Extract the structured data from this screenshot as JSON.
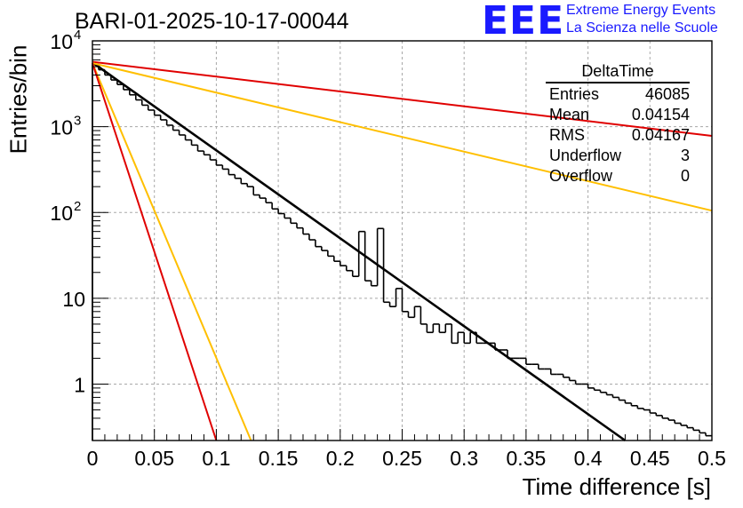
{
  "header": {
    "run_title": "BARI-01-2025-10-17-00044",
    "logo_text": "EEE",
    "logo_line1": "Extreme Energy Events",
    "logo_line2": "La Scienza nelle Scuole",
    "logo_color": "#1a1aff"
  },
  "stats": {
    "title": "DeltaTime",
    "rows": [
      {
        "label": "Entries",
        "value": "46085"
      },
      {
        "label": "Mean",
        "value": "0.04154"
      },
      {
        "label": "RMS",
        "value": "0.04167"
      },
      {
        "label": "Underflow",
        "value": "3"
      },
      {
        "label": "Overflow",
        "value": "0"
      }
    ]
  },
  "chart_data": {
    "type": "line",
    "title": "BARI-01-2025-10-17-00044",
    "xlabel": "Time difference [s]",
    "ylabel": "Entries/bin",
    "xlim": [
      0,
      0.5
    ],
    "ylim": [
      0.22,
      10000
    ],
    "yscale": "log",
    "grid": true,
    "x_ticks": [
      "0",
      "0.05",
      "0.1",
      "0.15",
      "0.2",
      "0.25",
      "0.3",
      "0.35",
      "0.4",
      "0.45",
      "0.5"
    ],
    "x_tick_values": [
      0,
      0.05,
      0.1,
      0.15,
      0.2,
      0.25,
      0.3,
      0.35,
      0.4,
      0.45,
      0.5
    ],
    "y_ticks": [
      {
        "value": 10000,
        "base": "10",
        "exp": "4"
      },
      {
        "value": 1000,
        "base": "10",
        "exp": "3"
      },
      {
        "value": 100,
        "base": "10",
        "exp": "2"
      },
      {
        "value": 10,
        "base": "10",
        "exp": ""
      },
      {
        "value": 1,
        "base": "1",
        "exp": ""
      }
    ],
    "histogram": {
      "name": "DeltaTime",
      "bin_width": 0.005,
      "counts": [
        5300,
        4600,
        4000,
        3500,
        3100,
        2700,
        2350,
        2050,
        1780,
        1560,
        1360,
        1200,
        1040,
        910,
        800,
        700,
        610,
        520,
        470,
        410,
        356,
        320,
        276,
        250,
        217,
        200,
        160,
        147,
        130,
        110,
        97,
        86,
        75,
        66,
        56,
        48,
        40,
        36,
        31,
        27,
        24,
        21,
        18,
        60,
        16,
        14,
        65,
        9,
        8,
        13,
        7,
        6,
        8,
        5,
        4,
        5,
        4,
        5,
        3,
        4,
        3,
        4,
        3,
        3,
        3,
        2.5,
        2.5,
        2,
        2,
        2,
        1.7,
        1.7,
        1.5,
        1.5,
        1.3,
        1.3,
        1.2,
        1.1,
        1,
        1,
        0.9,
        0.85,
        0.8,
        0.75,
        0.7,
        0.65,
        0.6,
        0.56,
        0.52,
        0.5,
        0.46,
        0.43,
        0.4,
        0.38,
        0.35,
        0.33,
        0.31,
        0.29,
        0.27,
        0.25
      ]
    },
    "fit_lines": [
      {
        "name": "fit",
        "color": "#000000",
        "x": [
          0,
          0.43
        ],
        "y": [
          5600,
          0.21
        ]
      },
      {
        "name": "tau-upper-slow",
        "color": "#e00000",
        "x": [
          0,
          0.5
        ],
        "y": [
          5700,
          780
        ]
      },
      {
        "name": "tau-lower-slow",
        "color": "#ffbf00",
        "x": [
          0,
          0.5
        ],
        "y": [
          5500,
          105
        ]
      },
      {
        "name": "tau-upper-fast",
        "color": "#ffbf00",
        "x": [
          0,
          0.128
        ],
        "y": [
          5500,
          0.22
        ]
      },
      {
        "name": "tau-lower-fast",
        "color": "#e00000",
        "x": [
          0,
          0.1
        ],
        "y": [
          5500,
          0.22
        ]
      }
    ]
  }
}
